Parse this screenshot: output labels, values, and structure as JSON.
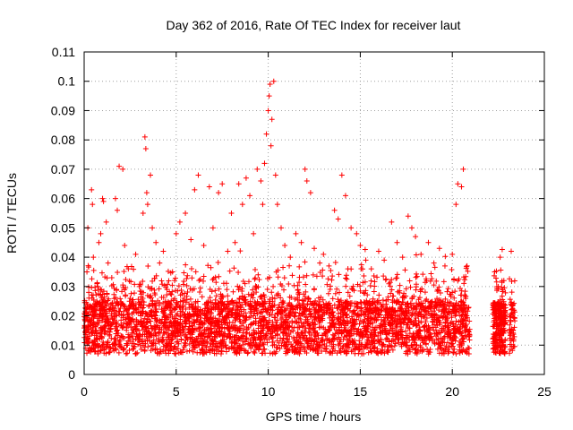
{
  "chart_data": {
    "type": "scatter",
    "title": "Day 362 of 2016, Rate Of TEC Index for receiver laut",
    "xlabel": "GPS time / hours",
    "ylabel": "ROTI / TECUs",
    "xlim": [
      0,
      25
    ],
    "ylim": [
      0,
      0.11
    ],
    "x_ticks": [
      "0",
      "5",
      "10",
      "15",
      "20",
      "25"
    ],
    "y_ticks": [
      "0",
      "0.01",
      "0.02",
      "0.03",
      "0.04",
      "0.05",
      "0.06",
      "0.07",
      "0.08",
      "0.09",
      "0.1",
      "0.11"
    ],
    "grid": true,
    "marker": "+",
    "color": "#ff0000",
    "series": [
      {
        "values": [
          [
            0.1,
            0.012
          ],
          [
            0.15,
            0.035
          ],
          [
            0.2,
            0.05
          ],
          [
            0.25,
            0.028
          ],
          [
            0.3,
            0.018
          ],
          [
            0.4,
            0.063
          ],
          [
            0.45,
            0.058
          ],
          [
            0.5,
            0.04
          ],
          [
            0.6,
            0.022
          ],
          [
            0.7,
            0.031
          ],
          [
            0.8,
            0.045
          ],
          [
            0.9,
            0.048
          ],
          [
            1.0,
            0.06
          ],
          [
            1.05,
            0.059
          ],
          [
            1.2,
            0.052
          ],
          [
            1.3,
            0.038
          ],
          [
            1.5,
            0.033
          ],
          [
            1.7,
            0.06
          ],
          [
            1.8,
            0.056
          ],
          [
            1.9,
            0.071
          ],
          [
            2.1,
            0.07
          ],
          [
            2.2,
            0.044
          ],
          [
            2.4,
            0.036
          ],
          [
            2.6,
            0.025
          ],
          [
            2.8,
            0.041
          ],
          [
            3.0,
            0.03
          ],
          [
            3.2,
            0.055
          ],
          [
            3.3,
            0.081
          ],
          [
            3.35,
            0.077
          ],
          [
            3.4,
            0.062
          ],
          [
            3.45,
            0.058
          ],
          [
            3.6,
            0.068
          ],
          [
            3.7,
            0.05
          ],
          [
            3.9,
            0.045
          ],
          [
            4.1,
            0.038
          ],
          [
            4.3,
            0.042
          ],
          [
            4.5,
            0.029
          ],
          [
            4.8,
            0.035
          ],
          [
            5.0,
            0.048
          ],
          [
            5.2,
            0.052
          ],
          [
            5.5,
            0.055
          ],
          [
            5.8,
            0.046
          ],
          [
            6.0,
            0.063
          ],
          [
            6.2,
            0.068
          ],
          [
            6.5,
            0.044
          ],
          [
            6.8,
            0.064
          ],
          [
            7.0,
            0.05
          ],
          [
            7.3,
            0.062
          ],
          [
            7.5,
            0.065
          ],
          [
            7.8,
            0.042
          ],
          [
            8.0,
            0.055
          ],
          [
            8.2,
            0.045
          ],
          [
            8.4,
            0.065
          ],
          [
            8.6,
            0.058
          ],
          [
            8.8,
            0.067
          ],
          [
            9.0,
            0.061
          ],
          [
            9.2,
            0.048
          ],
          [
            9.4,
            0.07
          ],
          [
            9.6,
            0.066
          ],
          [
            9.7,
            0.058
          ],
          [
            9.8,
            0.072
          ],
          [
            9.9,
            0.082
          ],
          [
            10.0,
            0.09
          ],
          [
            10.05,
            0.095
          ],
          [
            10.1,
            0.099
          ],
          [
            10.3,
            0.1
          ],
          [
            10.2,
            0.087
          ],
          [
            10.15,
            0.078
          ],
          [
            10.4,
            0.068
          ],
          [
            10.5,
            0.058
          ],
          [
            10.7,
            0.05
          ],
          [
            10.9,
            0.044
          ],
          [
            11.2,
            0.04
          ],
          [
            11.5,
            0.048
          ],
          [
            11.8,
            0.045
          ],
          [
            12.0,
            0.07
          ],
          [
            12.1,
            0.066
          ],
          [
            12.3,
            0.062
          ],
          [
            12.5,
            0.043
          ],
          [
            12.8,
            0.038
          ],
          [
            13.0,
            0.041
          ],
          [
            13.3,
            0.037
          ],
          [
            13.6,
            0.056
          ],
          [
            13.8,
            0.053
          ],
          [
            14.0,
            0.068
          ],
          [
            14.2,
            0.061
          ],
          [
            14.5,
            0.05
          ],
          [
            14.8,
            0.048
          ],
          [
            15.0,
            0.044
          ],
          [
            15.3,
            0.039
          ],
          [
            15.6,
            0.036
          ],
          [
            16.0,
            0.042
          ],
          [
            16.3,
            0.039
          ],
          [
            16.7,
            0.052
          ],
          [
            17.0,
            0.045
          ],
          [
            17.3,
            0.04
          ],
          [
            17.6,
            0.054
          ],
          [
            17.8,
            0.05
          ],
          [
            18.0,
            0.047
          ],
          [
            18.3,
            0.041
          ],
          [
            18.7,
            0.045
          ],
          [
            19.0,
            0.038
          ],
          [
            19.3,
            0.043
          ],
          [
            19.6,
            0.037
          ],
          [
            20.0,
            0.041
          ],
          [
            20.2,
            0.058
          ],
          [
            20.3,
            0.065
          ],
          [
            20.5,
            0.064
          ],
          [
            20.6,
            0.07
          ],
          [
            20.8,
            0.037
          ],
          [
            22.3,
            0.035
          ],
          [
            22.5,
            0.03
          ],
          [
            22.6,
            0.04
          ],
          [
            22.8,
            0.032
          ],
          [
            23.2,
            0.042
          ],
          [
            23.3,
            0.015
          ]
        ]
      }
    ]
  }
}
